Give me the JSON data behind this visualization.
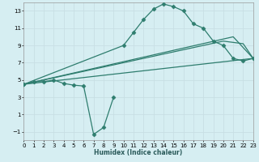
{
  "xlabel": "Humidex (Indice chaleur)",
  "line_color": "#2e7d6e",
  "bg_color": "#d6eef2",
  "grid_color": "#c8dfe4",
  "lines": [
    {
      "x": [
        0,
        1,
        2,
        3,
        4,
        5,
        6,
        7,
        8,
        9
      ],
      "y": [
        4.5,
        4.8,
        4.8,
        5.0,
        4.6,
        4.4,
        4.3,
        -1.3,
        -0.5,
        3.0
      ],
      "marker": "D",
      "markersize": 2.5
    },
    {
      "x": [
        0,
        10,
        11,
        12,
        13,
        14,
        15,
        16,
        17,
        18,
        19,
        20,
        21,
        22,
        23
      ],
      "y": [
        4.5,
        9.0,
        10.5,
        12.0,
        13.2,
        13.8,
        13.5,
        13.0,
        11.5,
        11.0,
        9.5,
        9.0,
        7.5,
        7.2,
        7.5
      ],
      "marker": "D",
      "markersize": 2.5
    },
    {
      "x": [
        0,
        23
      ],
      "y": [
        4.5,
        7.5
      ],
      "marker": null,
      "markersize": 0
    },
    {
      "x": [
        0,
        21,
        23
      ],
      "y": [
        4.5,
        10.0,
        7.5
      ],
      "marker": null,
      "markersize": 0
    },
    {
      "x": [
        0,
        20,
        22,
        23
      ],
      "y": [
        4.5,
        9.5,
        9.2,
        7.5
      ],
      "marker": null,
      "markersize": 0
    }
  ],
  "xlim": [
    0,
    23
  ],
  "ylim": [
    -2,
    14
  ],
  "yticks": [
    -1,
    1,
    3,
    5,
    7,
    9,
    11,
    13
  ],
  "xticks": [
    0,
    1,
    2,
    3,
    4,
    5,
    6,
    7,
    8,
    9,
    10,
    11,
    12,
    13,
    14,
    15,
    16,
    17,
    18,
    19,
    20,
    21,
    22,
    23
  ],
  "tick_labelsize": 5.0,
  "xlabel_fontsize": 5.5,
  "xlabel_color": "#2a5a5a"
}
